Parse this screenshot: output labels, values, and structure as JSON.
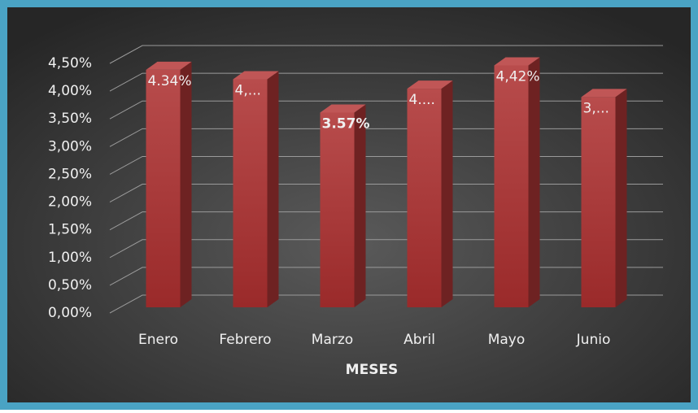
{
  "chart_data": {
    "type": "bar3d",
    "x_label": "MESES",
    "categories": [
      "Enero",
      "Febrero",
      "Marzo",
      "Abril",
      "Mayo",
      "Junio"
    ],
    "values": [
      4.34,
      4.17,
      3.57,
      4.0,
      4.42,
      3.85
    ],
    "value_labels": [
      "4.34%",
      "4,...",
      "3.57%",
      "4....",
      "4,42%",
      "3,..."
    ],
    "color": "#a33a3a",
    "ylim": [
      0,
      4.5
    ],
    "yticks": [
      {
        "value": 0,
        "label": "0,00%"
      },
      {
        "value": 0.5,
        "label": "0,50%"
      },
      {
        "value": 1,
        "label": "1,00%"
      },
      {
        "value": 1.5,
        "label": "1,50%"
      },
      {
        "value": 2,
        "label": "2,00%"
      },
      {
        "value": 2.5,
        "label": "2,50%"
      },
      {
        "value": 3,
        "label": "3,00%"
      },
      {
        "value": 3.5,
        "label": "3,50%"
      },
      {
        "value": 4,
        "label": "4,00%"
      },
      {
        "value": 4.5,
        "label": "4,50%"
      }
    ],
    "grid": true
  }
}
